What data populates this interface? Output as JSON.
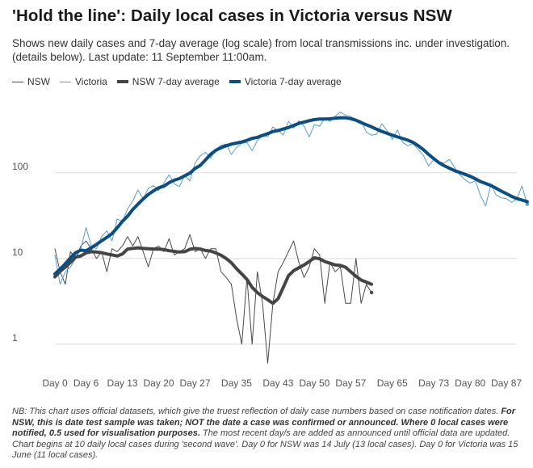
{
  "title": "'Hold the line': Daily local cases in Victoria versus NSW",
  "subtitle": "Shows new daily cases and 7-day average (log scale) from local transmissions inc. under investigation. (details below). Last update: 11 September 11:00am.",
  "note": {
    "part1": "NB: This chart uses official datasets, which give the truest reflection of daily case numbers based on case notification dates. ",
    "bold": "For NSW, this is date test sample was taken; NOT the date a case was confirmed or announced. Where 0 local cases were notified, 0.5 used for visualisation purposes.",
    "part2": " The most recent day/s are added as announced until official data are updated. Chart begins at 10 daily local cases during 'second wave'. Day 0 for NSW was 14 July (13 local cases). Day 0 for Victoria was 15 June (11 local cases)."
  },
  "colors": {
    "nsw": "#4a4a4a",
    "victoria": "#5b9bd0",
    "nsw_avg": "#454545",
    "victoria_avg": "#0b4f82",
    "grid": "#dcdcdc"
  },
  "chart_data": {
    "type": "line",
    "yscale": "log",
    "xlim": [
      0,
      89
    ],
    "ylim_log": [
      0.4,
      800
    ],
    "y_ticks": [
      1,
      10,
      100
    ],
    "y_tick_labels": [
      "1",
      "10",
      "100"
    ],
    "x_ticks": [
      0,
      6,
      13,
      20,
      27,
      35,
      43,
      50,
      57,
      65,
      73,
      80,
      87
    ],
    "x_tick_labels": [
      "Day 0",
      "Day 6",
      "Day 13",
      "Day 20",
      "Day 27",
      "Day 35",
      "Day 43",
      "Day 50",
      "Day 57",
      "Day 65",
      "Day 73",
      "Day 80",
      "Day 87"
    ],
    "legend": "top-left",
    "series": [
      {
        "name": "NSW",
        "values": [
          13,
          7,
          5,
          12,
          10,
          14,
          16,
          13,
          10,
          12,
          7,
          13,
          12,
          14,
          18,
          14,
          18,
          12,
          8,
          13,
          14,
          12,
          17,
          11,
          12,
          13,
          19,
          12,
          13,
          10,
          13,
          13,
          7,
          6,
          5,
          2,
          1,
          6,
          1,
          7,
          3,
          0.6,
          3,
          7,
          9,
          12,
          16,
          9,
          6,
          8,
          13,
          11,
          3,
          9,
          7,
          8,
          3,
          3,
          10,
          3,
          5,
          4
        ]
      },
      {
        "name": "Victoria",
        "values": [
          11,
          5,
          7,
          8,
          10,
          13,
          23,
          14,
          13,
          18,
          21,
          16,
          29,
          27,
          38,
          47,
          63,
          50,
          66,
          71,
          62,
          76,
          95,
          74,
          69,
          93,
          80,
          129,
          158,
          173,
          147,
          187,
          209,
          217,
          164,
          197,
          220,
          225,
          181,
          238,
          272,
          262,
          343,
          312,
          276,
          399,
          333,
          405,
          349,
          262,
          365,
          350,
          434,
          397,
          457,
          510,
          470,
          452,
          421,
          404,
          299,
          274,
          282,
          373,
          310,
          246,
          316,
          226,
          207,
          219,
          187,
          159,
          120,
          143,
          134,
          130,
          143,
          116,
          95,
          83,
          76,
          81,
          54,
          41,
          73,
          55,
          51,
          50,
          45,
          50,
          70,
          43
        ]
      },
      {
        "name": "NSW 7-day average",
        "values": [
          6.1,
          7.1,
          7.9,
          9.0,
          10.4,
          10.7,
          11.6,
          12.0,
          11.9,
          11.7,
          11.3,
          11.0,
          10.7,
          11.3,
          12.9,
          13.1,
          13.3,
          13.1,
          13.0,
          12.9,
          12.9,
          12.7,
          12.3,
          12.1,
          11.9,
          12.0,
          12.8,
          13.1,
          12.9,
          12.4,
          12.2,
          11.6,
          10.9,
          10.0,
          8.9,
          7.6,
          6.6,
          5.7,
          4.6,
          4.0,
          3.6,
          3.3,
          3.0,
          3.4,
          4.6,
          6.3,
          7.2,
          7.8,
          8.4,
          9.2,
          10.2,
          9.9,
          9.2,
          8.8,
          8.4,
          8.3,
          7.9,
          7.0,
          6.2,
          5.6,
          5.3,
          5.0
        ]
      },
      {
        "name": "Victoria 7-day average",
        "values": [
          6.6,
          7.5,
          8.7,
          10.2,
          11.7,
          12.5,
          12.3,
          13.3,
          14.6,
          16.1,
          17.6,
          19.5,
          22.8,
          27.1,
          31.2,
          37.2,
          43.0,
          49.4,
          56.0,
          61.5,
          66.9,
          69.8,
          76.6,
          82.0,
          85.7,
          92.2,
          99.0,
          112,
          122,
          141,
          164,
          183,
          196,
          207,
          216,
          222,
          229,
          239,
          252,
          259,
          273,
          286,
          303,
          311,
          324,
          337,
          356,
          377,
          390,
          405,
          417,
          423,
          424,
          426,
          434,
          438,
          437,
          428,
          411,
          385,
          364,
          344,
          322,
          304,
          289,
          275,
          262,
          251,
          240,
          226,
          207,
          186,
          164,
          146,
          131,
          121,
          113,
          106,
          101,
          96,
          91,
          85,
          79,
          75,
          71,
          66,
          61,
          57,
          53,
          50,
          48,
          46
        ]
      }
    ]
  }
}
